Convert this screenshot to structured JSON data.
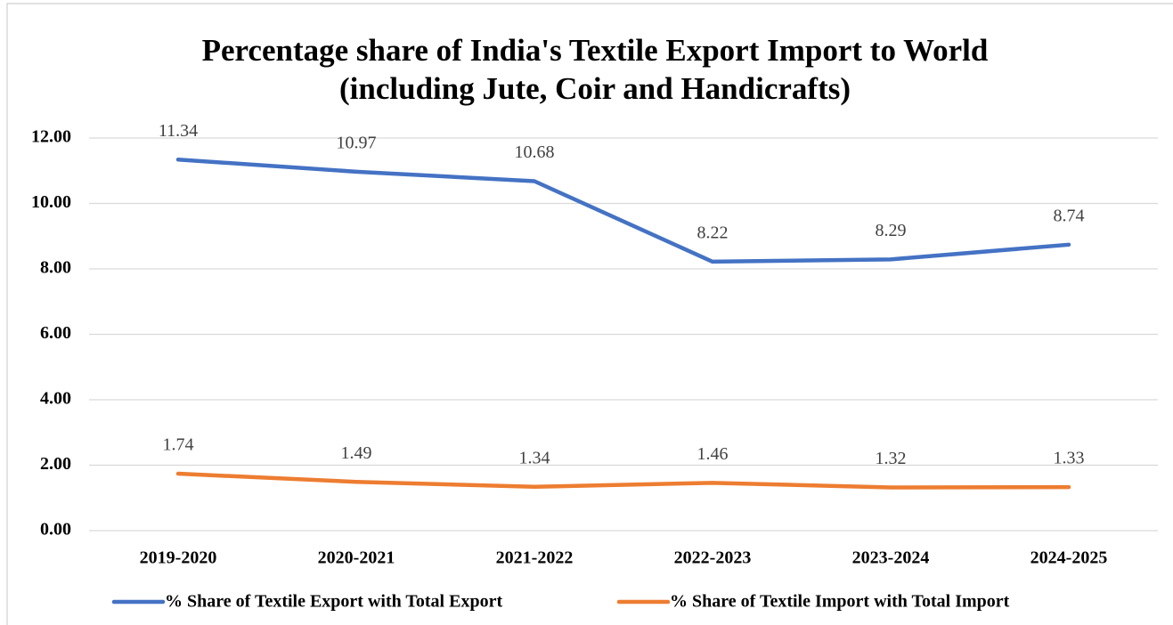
{
  "chart_data": {
    "type": "line",
    "title": "Percentage share of India's Textile Export Import to World",
    "subtitle": "(including Jute, Coir and Handicrafts)",
    "categories": [
      "2019-2020",
      "2020-2021",
      "2021-2022",
      "2022-2023",
      "2023-2024",
      "2024-2025"
    ],
    "series": [
      {
        "name": "% Share of Textile Export with Total Export",
        "color": "#4472c4",
        "values": [
          11.34,
          10.97,
          10.68,
          8.22,
          8.29,
          8.74
        ]
      },
      {
        "name": "% Share of Textile Import with Total Import",
        "color": "#ed7d31",
        "values": [
          1.74,
          1.49,
          1.34,
          1.46,
          1.32,
          1.33
        ]
      }
    ],
    "ylim": [
      0,
      12
    ],
    "yticks": [
      {
        "value": 0,
        "label": "0.00"
      },
      {
        "value": 2,
        "label": "2.00"
      },
      {
        "value": 4,
        "label": "4.00"
      },
      {
        "value": 6,
        "label": "6.00"
      },
      {
        "value": 8,
        "label": "8.00"
      },
      {
        "value": 10,
        "label": "10.00"
      },
      {
        "value": 12,
        "label": "12.00"
      }
    ],
    "grid": true,
    "legend": "bottom",
    "data_labels": true
  }
}
